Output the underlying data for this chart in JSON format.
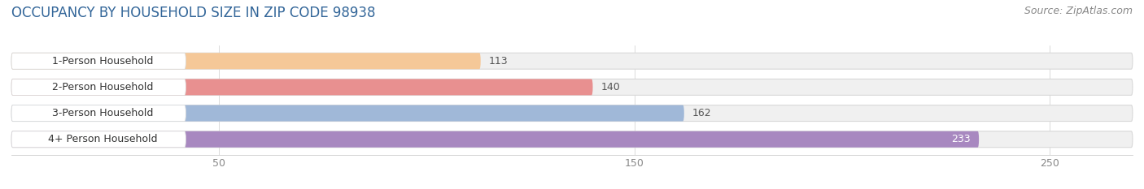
{
  "title": "OCCUPANCY BY HOUSEHOLD SIZE IN ZIP CODE 98938",
  "source": "Source: ZipAtlas.com",
  "categories": [
    "1-Person Household",
    "2-Person Household",
    "3-Person Household",
    "4+ Person Household"
  ],
  "values": [
    113,
    140,
    162,
    233
  ],
  "bar_colors": [
    "#f5c898",
    "#e89090",
    "#a0b8d8",
    "#a888c0"
  ],
  "label_colors": [
    "#333333",
    "#333333",
    "#333333",
    "#ffffff"
  ],
  "xlim": [
    0,
    270
  ],
  "xticks": [
    50,
    150,
    250
  ],
  "title_fontsize": 12,
  "source_fontsize": 9,
  "label_fontsize": 9,
  "value_fontsize": 9,
  "bar_height": 0.62,
  "background_color": "#ffffff",
  "track_color": "#f0f0f0",
  "track_edge_color": "#d8d8d8",
  "title_color": "#336699",
  "x_label_start": 270
}
